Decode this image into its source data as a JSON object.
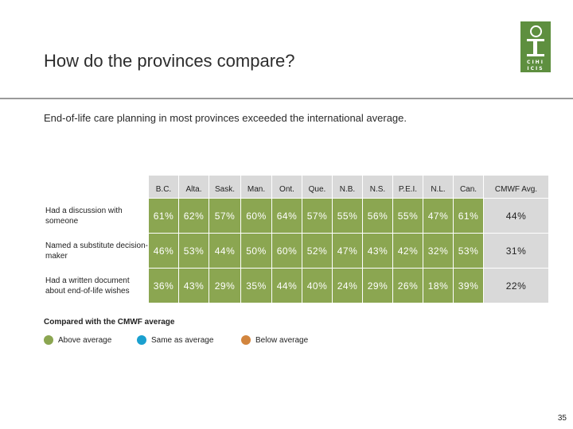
{
  "slide": {
    "title": "How do the provinces compare?",
    "subtitle": "End-of-life care planning in most provinces exceeded the international average.",
    "page_number": "35"
  },
  "logo": {
    "line1": "CIHI",
    "line2": "ICIS"
  },
  "table": {
    "headers": [
      "B.C.",
      "Alta.",
      "Sask.",
      "Man.",
      "Ont.",
      "Que.",
      "N.B.",
      "N.S.",
      "P.E.I.",
      "N.L.",
      "Can.",
      "CMWF Avg."
    ],
    "rows": [
      {
        "label": "Had a discussion with someone",
        "values": [
          "61%",
          "62%",
          "57%",
          "60%",
          "64%",
          "57%",
          "55%",
          "56%",
          "55%",
          "47%",
          "61%",
          "44%"
        ]
      },
      {
        "label": "Named a substitute decision-maker",
        "values": [
          "46%",
          "53%",
          "44%",
          "50%",
          "60%",
          "52%",
          "47%",
          "43%",
          "42%",
          "32%",
          "53%",
          "31%"
        ]
      },
      {
        "label": "Had a written document about end-of-life wishes",
        "values": [
          "36%",
          "43%",
          "29%",
          "35%",
          "44%",
          "40%",
          "24%",
          "29%",
          "26%",
          "18%",
          "39%",
          "22%"
        ]
      }
    ]
  },
  "legend": {
    "title": "Compared with the CMWF average",
    "items": [
      {
        "label": "Above average",
        "color": "#8ba651"
      },
      {
        "label": "Same as average",
        "color": "#1aa0cf"
      },
      {
        "label": "Below average",
        "color": "#d2853e"
      }
    ]
  },
  "colors": {
    "above": "#8ba651",
    "header_bg": "#d9d9d9",
    "logo_green": "#5e8f3f"
  }
}
